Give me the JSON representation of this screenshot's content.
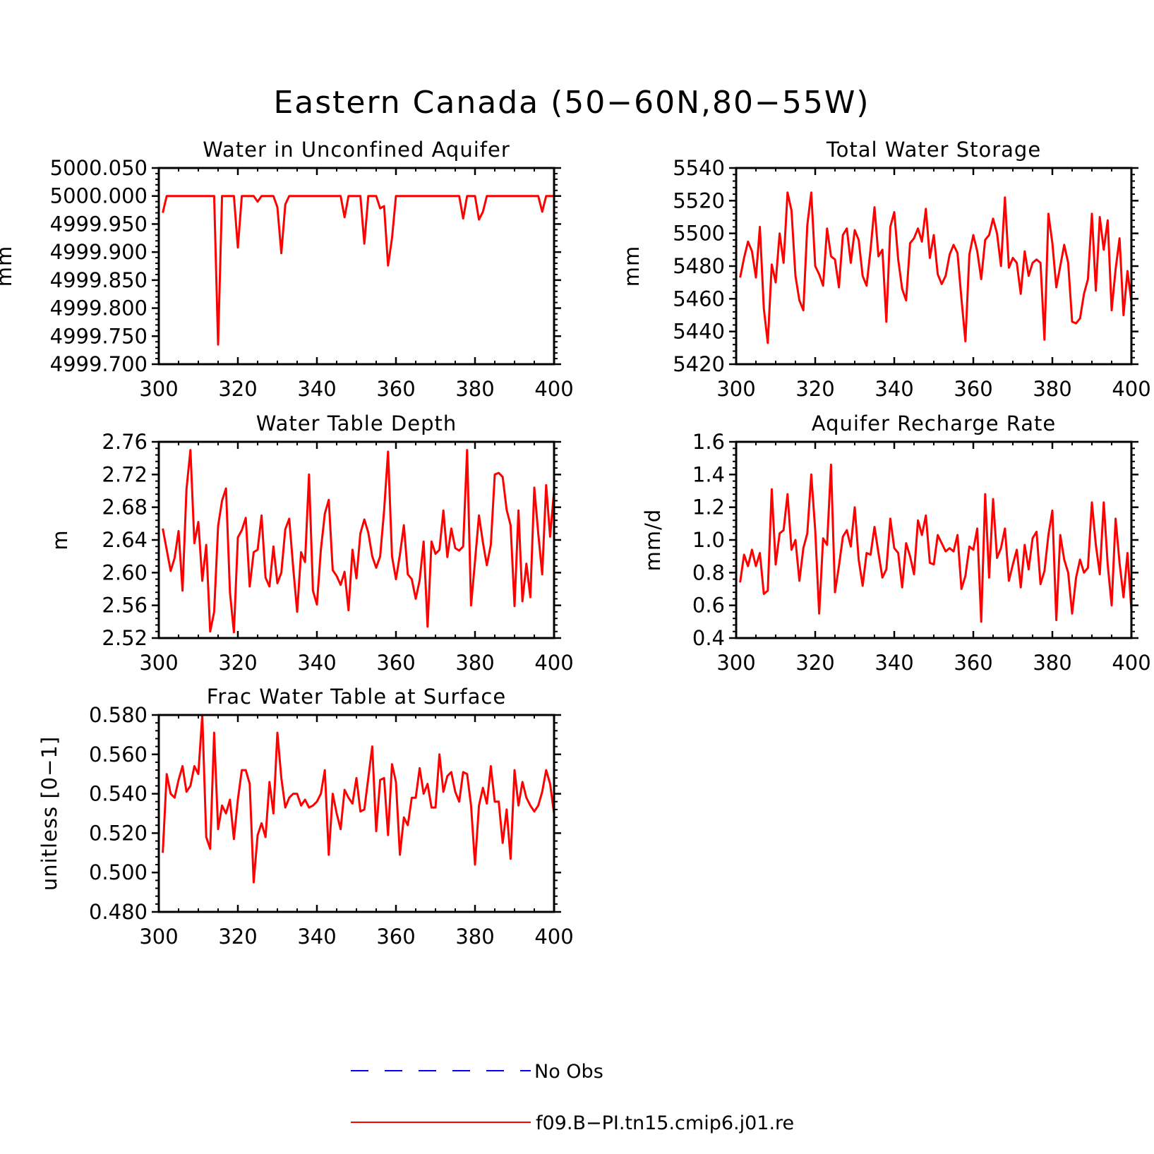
{
  "figure_title": "Eastern Canada (50−60N,80−55W)",
  "colors": {
    "model": "#ff0000",
    "obs": "#0000ff",
    "axis": "#000000"
  },
  "legend": {
    "obs_label": "No Obs",
    "model_label": "f09.B−PI.tn15.cmip6.j01.re"
  },
  "chart_data": [
    {
      "type": "line",
      "title": "Water in Unconfined Aquifer",
      "ylabel": "mm",
      "xlim": [
        300,
        400
      ],
      "ylim": [
        4999.7,
        5000.05
      ],
      "xticks": [
        "300",
        "320",
        "340",
        "360",
        "380",
        "400"
      ],
      "yticks": [
        "4999.700",
        "4999.750",
        "4999.800",
        "4999.850",
        "4999.900",
        "4999.950",
        "5000.000",
        "5000.050"
      ],
      "x_start": 301,
      "series": [
        {
          "name": "f09.B−PI.tn15.cmip6.j01.re",
          "values": [
            4999.97,
            5000,
            5000,
            5000,
            5000,
            5000,
            5000,
            5000,
            5000,
            5000,
            5000,
            5000,
            5000,
            5000,
            4999.735,
            5000,
            5000,
            5000,
            5000,
            4999.908,
            5000,
            5000,
            5000,
            5000,
            4999.99,
            5000,
            5000,
            5000,
            5000,
            4999.98,
            4999.898,
            4999.985,
            5000,
            5000,
            5000,
            5000,
            5000,
            5000,
            5000,
            5000,
            5000,
            5000,
            5000,
            5000,
            5000,
            5000,
            4999.962,
            5000,
            5000,
            5000,
            5000,
            4999.915,
            5000,
            5000,
            5000,
            4999.978,
            4999.982,
            4999.876,
            4999.925,
            5000,
            5000,
            5000,
            5000,
            5000,
            5000,
            5000,
            5000,
            5000,
            5000,
            5000,
            5000,
            5000,
            5000,
            5000,
            5000,
            5000,
            4999.96,
            5000,
            5000,
            5000,
            4999.958,
            4999.972,
            5000,
            5000,
            5000,
            5000,
            5000,
            5000,
            5000,
            5000,
            5000,
            5000,
            5000,
            5000,
            5000,
            5000,
            4999.972,
            5000,
            5000,
            5000
          ]
        }
      ]
    },
    {
      "type": "line",
      "title": "Total Water Storage",
      "ylabel": "mm",
      "xlim": [
        300,
        400
      ],
      "ylim": [
        5420,
        5540
      ],
      "xticks": [
        "300",
        "320",
        "340",
        "360",
        "380",
        "400"
      ],
      "yticks": [
        "5420",
        "5440",
        "5460",
        "5480",
        "5500",
        "5520",
        "5540"
      ],
      "x_start": 301,
      "series": [
        {
          "name": "f09.B−PI.tn15.cmip6.j01.re",
          "values": [
            5473,
            5485,
            5495,
            5489,
            5473,
            5504,
            5454,
            5433,
            5481,
            5470,
            5500,
            5482,
            5525,
            5514,
            5474,
            5459,
            5453,
            5505,
            5525,
            5480,
            5475,
            5468,
            5503,
            5486,
            5484,
            5467,
            5499,
            5503,
            5482,
            5502,
            5496,
            5474,
            5468,
            5490,
            5516,
            5486,
            5490,
            5446,
            5504,
            5513,
            5484,
            5466,
            5459,
            5494,
            5497,
            5503,
            5495,
            5515,
            5485,
            5499,
            5475,
            5469,
            5474,
            5487,
            5493,
            5488,
            5460,
            5434,
            5487,
            5499,
            5489,
            5472,
            5496,
            5499,
            5509,
            5500,
            5480,
            5522,
            5479,
            5485,
            5482,
            5463,
            5489,
            5474,
            5482,
            5484,
            5482,
            5435,
            5512,
            5494,
            5467,
            5480,
            5493,
            5482,
            5446,
            5445,
            5448,
            5463,
            5472,
            5512,
            5465,
            5510,
            5490,
            5508,
            5453,
            5478,
            5497,
            5450,
            5477,
            5458
          ]
        }
      ]
    },
    {
      "type": "line",
      "title": "Water Table Depth",
      "ylabel": "m",
      "xlim": [
        300,
        400
      ],
      "ylim": [
        2.52,
        2.76
      ],
      "xticks": [
        "300",
        "320",
        "340",
        "360",
        "380",
        "400"
      ],
      "yticks": [
        "2.52",
        "2.56",
        "2.60",
        "2.64",
        "2.68",
        "2.72",
        "2.76"
      ],
      "x_start": 301,
      "series": [
        {
          "name": "f09.B−PI.tn15.cmip6.j01.re",
          "values": [
            2.654,
            2.628,
            2.602,
            2.618,
            2.651,
            2.578,
            2.702,
            2.75,
            2.636,
            2.662,
            2.59,
            2.634,
            2.528,
            2.552,
            2.657,
            2.688,
            2.703,
            2.576,
            2.527,
            2.643,
            2.652,
            2.667,
            2.583,
            2.625,
            2.628,
            2.67,
            2.594,
            2.583,
            2.632,
            2.587,
            2.6,
            2.653,
            2.666,
            2.606,
            2.552,
            2.625,
            2.613,
            2.72,
            2.578,
            2.561,
            2.628,
            2.672,
            2.689,
            2.603,
            2.596,
            2.585,
            2.601,
            2.554,
            2.628,
            2.593,
            2.648,
            2.665,
            2.649,
            2.62,
            2.606,
            2.62,
            2.676,
            2.748,
            2.62,
            2.592,
            2.622,
            2.658,
            2.598,
            2.592,
            2.568,
            2.591,
            2.638,
            2.534,
            2.638,
            2.623,
            2.628,
            2.676,
            2.619,
            2.654,
            2.63,
            2.627,
            2.632,
            2.75,
            2.56,
            2.614,
            2.67,
            2.637,
            2.609,
            2.634,
            2.72,
            2.722,
            2.717,
            2.677,
            2.658,
            2.559,
            2.676,
            2.565,
            2.611,
            2.57,
            2.704,
            2.648,
            2.598,
            2.707,
            2.644,
            2.7
          ]
        }
      ]
    },
    {
      "type": "line",
      "title": "Aquifer Recharge Rate",
      "ylabel": "mm/d",
      "xlim": [
        300,
        400
      ],
      "ylim": [
        0.4,
        1.6
      ],
      "xticks": [
        "300",
        "320",
        "340",
        "360",
        "380",
        "400"
      ],
      "yticks": [
        "0.4",
        "0.6",
        "0.8",
        "1.0",
        "1.2",
        "1.4",
        "1.6"
      ],
      "x_start": 301,
      "series": [
        {
          "name": "f09.B−PI.tn15.cmip6.j01.re",
          "values": [
            0.74,
            0.91,
            0.84,
            0.94,
            0.84,
            0.92,
            0.67,
            0.69,
            1.31,
            0.85,
            1.04,
            1.06,
            1.28,
            0.94,
            1.0,
            0.75,
            0.95,
            1.04,
            1.4,
            1.06,
            0.55,
            1.01,
            0.97,
            1.46,
            0.68,
            0.84,
            1.02,
            1.06,
            0.96,
            1.2,
            0.88,
            0.72,
            0.92,
            0.91,
            1.08,
            0.92,
            0.77,
            0.82,
            1.13,
            0.95,
            0.92,
            0.71,
            0.98,
            0.9,
            0.79,
            1.12,
            1.03,
            1.15,
            0.86,
            0.85,
            1.03,
            0.98,
            0.93,
            0.95,
            0.93,
            1.03,
            0.7,
            0.78,
            0.96,
            0.94,
            1.07,
            0.5,
            1.28,
            0.77,
            1.25,
            0.89,
            0.95,
            1.07,
            0.75,
            0.85,
            0.94,
            0.71,
            0.97,
            0.82,
            1.01,
            1.05,
            0.73,
            0.81,
            1.03,
            1.18,
            0.51,
            1.03,
            0.88,
            0.8,
            0.55,
            0.77,
            0.88,
            0.8,
            0.83,
            1.23,
            0.97,
            0.79,
            1.23,
            0.85,
            0.6,
            1.13,
            0.86,
            0.65,
            0.92,
            0.57
          ]
        }
      ]
    },
    {
      "type": "line",
      "title": "Frac Water Table at Surface",
      "ylabel": "unitless [0−1]",
      "xlim": [
        300,
        400
      ],
      "ylim": [
        0.48,
        0.58
      ],
      "xticks": [
        "300",
        "320",
        "340",
        "360",
        "380",
        "400"
      ],
      "yticks": [
        "0.480",
        "0.500",
        "0.520",
        "0.540",
        "0.560",
        "0.580"
      ],
      "x_start": 301,
      "series": [
        {
          "name": "f09.B−PI.tn15.cmip6.j01.re",
          "values": [
            0.51,
            0.55,
            0.54,
            0.538,
            0.547,
            0.554,
            0.541,
            0.544,
            0.554,
            0.55,
            0.58,
            0.518,
            0.512,
            0.571,
            0.522,
            0.534,
            0.53,
            0.537,
            0.517,
            0.537,
            0.552,
            0.552,
            0.545,
            0.495,
            0.519,
            0.525,
            0.518,
            0.546,
            0.53,
            0.571,
            0.548,
            0.533,
            0.538,
            0.54,
            0.54,
            0.534,
            0.537,
            0.533,
            0.534,
            0.536,
            0.54,
            0.552,
            0.509,
            0.54,
            0.53,
            0.522,
            0.542,
            0.538,
            0.535,
            0.548,
            0.531,
            0.532,
            0.548,
            0.564,
            0.521,
            0.547,
            0.548,
            0.519,
            0.555,
            0.546,
            0.509,
            0.528,
            0.524,
            0.538,
            0.538,
            0.553,
            0.54,
            0.545,
            0.533,
            0.533,
            0.56,
            0.541,
            0.549,
            0.551,
            0.541,
            0.536,
            0.551,
            0.55,
            0.534,
            0.504,
            0.534,
            0.543,
            0.535,
            0.554,
            0.536,
            0.536,
            0.515,
            0.532,
            0.507,
            0.552,
            0.534,
            0.546,
            0.538,
            0.534,
            0.531,
            0.534,
            0.541,
            0.552,
            0.545,
            0.53
          ]
        }
      ]
    }
  ]
}
